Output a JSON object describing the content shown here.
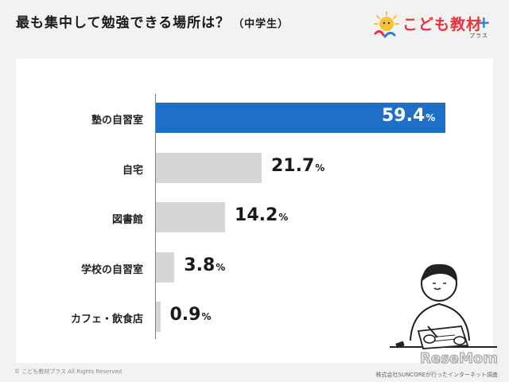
{
  "header": {
    "title": "最も集中して勉強できる場所は？",
    "subtitle": "（中学生）"
  },
  "logo": {
    "brand": "こども教材",
    "plus_kana": "プラス"
  },
  "footer": {
    "copyright": "© こども教材プラス All Rights Reserved",
    "source": "株式会社SUNCOREが行ったインターネット調査",
    "watermark": "ReseMom"
  },
  "colors": {
    "highlight": "#1e6fc8",
    "bar": "#d6d6d6",
    "background": "#f2f2f2",
    "panel": "#ffffff"
  },
  "chart_data": {
    "type": "bar",
    "orientation": "horizontal",
    "categories": [
      "塾の自習室",
      "自宅",
      "図書館",
      "学校の自習室",
      "カフェ・飲食店"
    ],
    "values": [
      59.4,
      21.7,
      14.2,
      3.8,
      0.9
    ],
    "unit": "%",
    "title": "最も集中して勉強できる場所は？",
    "xlim": [
      0,
      60
    ],
    "grid": false,
    "legend": "none"
  }
}
